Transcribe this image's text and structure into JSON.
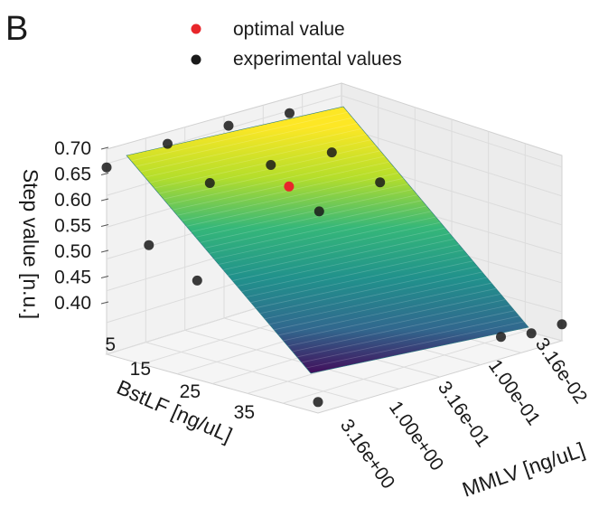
{
  "panel_label": "B",
  "chart_data": {
    "type": "surface3d",
    "legend": {
      "position": "top-center",
      "entries": [
        {
          "label": "optimal value",
          "color": "#e8262b"
        },
        {
          "label": "experimental values",
          "color": "#1a1a1a"
        }
      ]
    },
    "x_axis": {
      "label": "BstLF [ng/uL]",
      "ticks": [
        5,
        15,
        25,
        35
      ],
      "range": [
        5,
        40
      ]
    },
    "y_axis": {
      "label": "MMLV [ng/uL]",
      "scale": "log",
      "ticks": [
        "3.16e+00",
        "1.00e+00",
        "3.16e-01",
        "1.00e-01",
        "3.16e-02"
      ],
      "tick_values": [
        3.16,
        1.0,
        0.316,
        0.1,
        0.0316
      ],
      "range": [
        0.0316,
        3.16
      ]
    },
    "z_axis": {
      "label": "Step value [n.u.]",
      "ticks": [
        "0.40",
        "0.45",
        "0.50",
        "0.55",
        "0.60",
        "0.65",
        "0.70"
      ],
      "range": [
        0.36,
        0.72
      ]
    },
    "grid": true,
    "colormap": "viridis",
    "surface_corners": [
      {
        "bstlf": 5,
        "mmlv": 3.16,
        "step": 0.7
      },
      {
        "bstlf": 5,
        "mmlv": 0.0316,
        "step": 0.7
      },
      {
        "bstlf": 40,
        "mmlv": 0.0316,
        "step": 0.38
      },
      {
        "bstlf": 40,
        "mmlv": 3.16,
        "step": 0.38
      }
    ],
    "experimental_points": [
      {
        "bstlf": 5,
        "mmlv": 3.16,
        "step": 0.7
      },
      {
        "bstlf": 12,
        "mmlv": 3.16,
        "step": 0.58
      },
      {
        "bstlf": 20,
        "mmlv": 3.16,
        "step": 0.54
      },
      {
        "bstlf": 5,
        "mmlv": 1.0,
        "step": 0.71
      },
      {
        "bstlf": 5,
        "mmlv": 0.316,
        "step": 0.71
      },
      {
        "bstlf": 5,
        "mmlv": 0.1,
        "step": 0.7
      },
      {
        "bstlf": 12,
        "mmlv": 1.0,
        "step": 0.66
      },
      {
        "bstlf": 12,
        "mmlv": 0.316,
        "step": 0.66
      },
      {
        "bstlf": 12,
        "mmlv": 0.1,
        "step": 0.65
      },
      {
        "bstlf": 20,
        "mmlv": 0.316,
        "step": 0.6
      },
      {
        "bstlf": 20,
        "mmlv": 0.1,
        "step": 0.62
      },
      {
        "bstlf": 40,
        "mmlv": 3.16,
        "step": 0.38
      },
      {
        "bstlf": 40,
        "mmlv": 0.1,
        "step": 0.4
      },
      {
        "bstlf": 40,
        "mmlv": 0.0562,
        "step": 0.39
      },
      {
        "bstlf": 40,
        "mmlv": 0.0316,
        "step": 0.39
      }
    ],
    "optimal_point": {
      "bstlf": 15,
      "mmlv": 0.316,
      "step": 0.63
    }
  }
}
